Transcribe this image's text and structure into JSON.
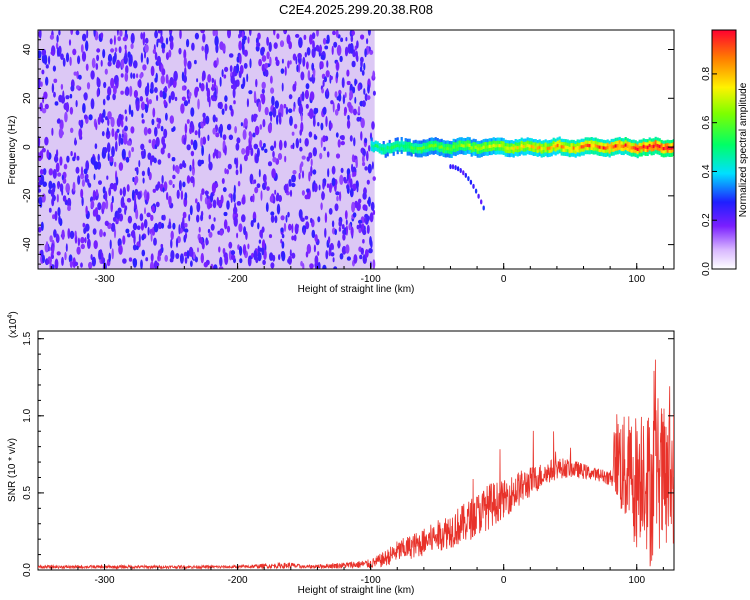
{
  "title": "C2E4.2025.299.20.38.R08",
  "colors": {
    "line": "#e8322a",
    "background_noise": "#b48ce6",
    "axis": "#000000"
  },
  "chart_data": [
    {
      "type": "heatmap",
      "xlabel": "Height of straight line (km)",
      "ylabel": "Frequency (Hz)",
      "xlim": [
        -350,
        128
      ],
      "ylim": [
        -50,
        48
      ],
      "xticks": [
        -300,
        -200,
        -100,
        0,
        100
      ],
      "xtick_labels": [
        "-300",
        "-200",
        "-100",
        "0",
        "100"
      ],
      "yticks": [
        -40,
        -20,
        0,
        20,
        40
      ],
      "ytick_labels": [
        "-40",
        "-20",
        "0",
        "20",
        "40"
      ],
      "colorbar": {
        "label": "Normalized spectral amplitude",
        "range": [
          0,
          0.98
        ],
        "ticks": [
          0.0,
          0.2,
          0.4,
          0.6,
          0.8
        ],
        "tick_labels": [
          "0.0",
          "0.2",
          "0.4",
          "0.6",
          "0.8"
        ],
        "colormap": "rainbow"
      },
      "features": {
        "noise_region_x": [
          -350,
          -97
        ],
        "signal_band": {
          "x": [
            -100,
            128
          ],
          "center_freq": 0,
          "half_width": 4,
          "peak_amplitude": 0.9
        },
        "trace": {
          "x": [
            -40,
            -15
          ],
          "freq": [
            -8,
            -25
          ]
        }
      }
    },
    {
      "type": "line",
      "xlabel": "Height of straight line (km)",
      "ylabel": "SNR (10 * v/v)",
      "scale_label": "(x10",
      "scale_exp": "4",
      "xlim": [
        -350,
        128
      ],
      "ylim": [
        0,
        1.55
      ],
      "xticks": [
        -300,
        -200,
        -100,
        0,
        100
      ],
      "xtick_labels": [
        "-300",
        "-200",
        "-100",
        "0",
        "100"
      ],
      "yticks": [
        0.0,
        0.5,
        1.0,
        1.5
      ],
      "ytick_labels": [
        "0.0",
        "0.5",
        "1.0",
        "1.5"
      ],
      "series": [
        {
          "x": [
            -350,
            -300,
            -250,
            -200,
            -160,
            -150,
            -120,
            -100,
            -90,
            -80,
            -70,
            -60,
            -50,
            -40,
            -30,
            -20,
            -10,
            0,
            10,
            20,
            30,
            40,
            50,
            60,
            70,
            80,
            85,
            90,
            95,
            100,
            105,
            110,
            115,
            120,
            128
          ],
          "values": [
            0.02,
            0.02,
            0.02,
            0.02,
            0.03,
            0.02,
            0.03,
            0.04,
            0.07,
            0.12,
            0.15,
            0.18,
            0.22,
            0.26,
            0.3,
            0.36,
            0.42,
            0.46,
            0.52,
            0.57,
            0.62,
            0.66,
            0.66,
            0.64,
            0.62,
            0.6,
            0.75,
            0.65,
            0.62,
            0.58,
            0.7,
            0.5,
            0.68,
            0.55,
            0.62
          ],
          "noise": [
            0.01,
            0.01,
            0.01,
            0.01,
            0.02,
            0.01,
            0.02,
            0.03,
            0.05,
            0.07,
            0.08,
            0.09,
            0.1,
            0.12,
            0.13,
            0.14,
            0.15,
            0.12,
            0.12,
            0.1,
            0.08,
            0.07,
            0.06,
            0.05,
            0.04,
            0.05,
            0.3,
            0.35,
            0.4,
            0.45,
            0.45,
            0.5,
            0.5,
            0.5,
            0.45
          ]
        }
      ]
    }
  ]
}
